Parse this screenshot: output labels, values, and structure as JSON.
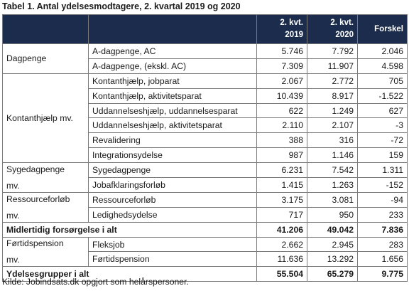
{
  "title": "Tabel 1. Antal ydelsesmodtagere, 2. kvartal 2019 og 2020",
  "headers": {
    "col2019": [
      "2. kvt.",
      "2019"
    ],
    "col2020": [
      "2. kvt.",
      "2020"
    ],
    "diff": "Forskel"
  },
  "groups": [
    {
      "label": [
        "Dagpenge"
      ],
      "rows": [
        {
          "name": "A-dagpenge, AC",
          "v2019": "5.746",
          "v2020": "7.792",
          "diff": "2.046"
        },
        {
          "name": "A-dagpenge, (ekskl. AC)",
          "v2019": "7.309",
          "v2020": "11.907",
          "diff": "4.598"
        }
      ]
    },
    {
      "label": [
        "Kontanthjælp mv."
      ],
      "rows": [
        {
          "name": "Kontanthjælp, jobparat",
          "v2019": "2.067",
          "v2020": "2.772",
          "diff": "705"
        },
        {
          "name": "Kontanthjælp, aktivitetsparat",
          "v2019": "10.439",
          "v2020": "8.917",
          "diff": "-1.522"
        },
        {
          "name": "Uddannelseshjælp, uddannelsesparat",
          "v2019": "622",
          "v2020": "1.249",
          "diff": "627"
        },
        {
          "name": "Uddannelseshjælp, aktivitetsparat",
          "v2019": "2.110",
          "v2020": "2.107",
          "diff": "-3"
        },
        {
          "name": "Revalidering",
          "v2019": "388",
          "v2020": "316",
          "diff": "-72"
        },
        {
          "name": "Integrationsydelse",
          "v2019": "987",
          "v2020": "1.146",
          "diff": "159"
        }
      ]
    },
    {
      "label": [
        "Sygedagpenge",
        "mv."
      ],
      "rows": [
        {
          "name": "Sygedagpenge",
          "v2019": "6.231",
          "v2020": "7.542",
          "diff": "1.311"
        },
        {
          "name": "Jobafklaringsforløb",
          "v2019": "1.415",
          "v2020": "1.263",
          "diff": "-152"
        }
      ]
    },
    {
      "label": [
        "Ressourceforløb",
        "mv."
      ],
      "rows": [
        {
          "name": "Ressourceforløb",
          "v2019": "3.175",
          "v2020": "3.081",
          "diff": "-94"
        },
        {
          "name": "Ledighedsydelse",
          "v2019": "717",
          "v2020": "950",
          "diff": "233"
        }
      ]
    },
    {
      "summary": {
        "name": "Midlertidig forsørgelse i alt",
        "v2019": "41.206",
        "v2020": "49.042",
        "diff": "7.836"
      }
    },
    {
      "label": [
        "Førtidspension",
        "mv."
      ],
      "rows": [
        {
          "name": "Fleksjob",
          "v2019": "2.662",
          "v2020": "2.945",
          "diff": "283"
        },
        {
          "name": "Førtidspension",
          "v2019": "11.636",
          "v2020": "13.292",
          "diff": "1.656"
        }
      ]
    },
    {
      "summary": {
        "name": "Ydelsesgrupper i alt",
        "v2019": "55.504",
        "v2020": "65.279",
        "diff": "9.775"
      }
    }
  ],
  "source": "Kilde: Jobindsats.dk opgjort som helårspersoner."
}
